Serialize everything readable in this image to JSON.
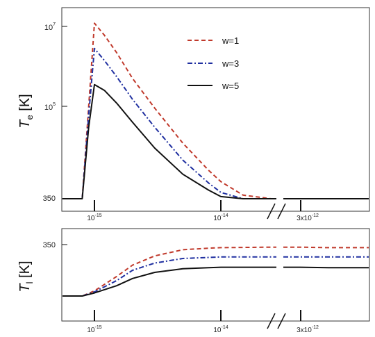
{
  "chart_data": [
    {
      "type": "line",
      "panel": "top",
      "ylabel": {
        "main": "T",
        "sub": "e",
        "unit": "[K]"
      },
      "yscale": "log",
      "yticks": [
        {
          "base": "10",
          "exp": "7",
          "value": 10000000
        },
        {
          "base": "10",
          "exp": "5",
          "value": 100000
        },
        {
          "base": "350",
          "exp": "",
          "value": 350
        }
      ],
      "xscale": "log with axis break",
      "xticks": [
        {
          "base": "10",
          "exp": "-15",
          "value": 1e-15
        },
        {
          "base": "10",
          "exp": "-14",
          "value": 1e-14
        },
        {
          "base": "3x10",
          "exp": "-12",
          "value": 3e-12
        }
      ],
      "x": [
        5e-16,
        8e-16,
        9e-16,
        1e-15,
        1.2e-15,
        1.5e-15,
        2e-15,
        3e-15,
        5e-15,
        8e-15,
        1e-14,
        1.5e-14,
        2.5e-14,
        3e-12,
        5e-12
      ],
      "legend_position": "top-right",
      "series": [
        {
          "name": "w=1",
          "color": "#c0392b",
          "dash": "dashed",
          "values": [
            350,
            400,
            100000,
            12000000,
            6000000,
            2200000,
            500000,
            90000,
            12000,
            2500,
            1300,
            600,
            370,
            360,
            360
          ]
        },
        {
          "name": "w=3",
          "color": "#1f2fa0",
          "dash": "dashdot",
          "values": [
            350,
            390,
            60000,
            2800000,
            1400000,
            550000,
            150000,
            30000,
            4500,
            1200,
            700,
            420,
            355,
            355,
            355
          ]
        },
        {
          "name": "w=5",
          "color": "#111111",
          "dash": "solid",
          "values": [
            350,
            380,
            30000,
            350000,
            250000,
            120000,
            40000,
            9000,
            2000,
            800,
            550,
            400,
            352,
            352,
            352
          ]
        }
      ]
    },
    {
      "type": "line",
      "panel": "bottom",
      "ylabel": {
        "main": "T",
        "sub": "l",
        "unit": "[K]"
      },
      "yticks": [
        {
          "base": "350",
          "exp": "",
          "value": 350
        }
      ],
      "ylim": [
        300,
        355
      ],
      "xticks": [
        {
          "base": "10",
          "exp": "-15",
          "value": 1e-15
        },
        {
          "base": "10",
          "exp": "-14",
          "value": 1e-14
        },
        {
          "base": "3x10",
          "exp": "-12",
          "value": 3e-12
        }
      ],
      "x": [
        5e-16,
        8e-16,
        1e-15,
        1.5e-15,
        2e-15,
        3e-15,
        5e-15,
        8e-15,
        1e-14,
        2.5e-14,
        3e-12,
        5e-12
      ],
      "series": [
        {
          "name": "w=1",
          "color": "#c0392b",
          "dash": "dashed",
          "values": [
            300,
            300,
            305,
            319,
            330,
            339,
            345,
            346.5,
            347,
            347.5,
            347.5,
            347
          ]
        },
        {
          "name": "w=3",
          "color": "#1f2fa0",
          "dash": "dashdot",
          "values": [
            300,
            300,
            304,
            315,
            325,
            332,
            336.5,
            337.5,
            338,
            338,
            338,
            338
          ]
        },
        {
          "name": "w=5",
          "color": "#111111",
          "dash": "solid",
          "values": [
            300,
            300,
            303,
            310,
            317,
            323,
            326.5,
            327.5,
            328,
            328,
            328,
            327.5
          ]
        }
      ]
    }
  ]
}
